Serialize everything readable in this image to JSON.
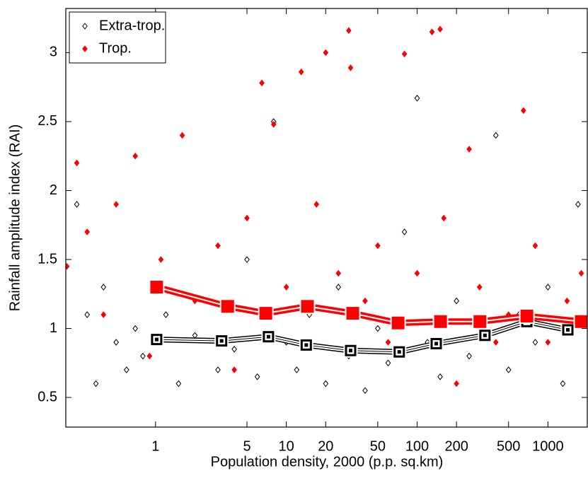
{
  "chart_data": {
    "type": "scatter",
    "xlabel": "Population density, 2000 (p.p. sq.km)",
    "ylabel": "Rainfall amplitude index (RAI)",
    "xscale": "log",
    "xlim": [
      0.206,
      2000
    ],
    "ylim": [
      0.285,
      3.32
    ],
    "xticks": [
      1,
      5,
      10,
      20,
      50,
      100,
      200,
      500,
      1000
    ],
    "yticks": [
      0.5,
      1,
      1.5,
      2,
      2.5,
      3
    ],
    "legend": "upper left",
    "series": [
      {
        "name": "Extra-trop.",
        "color": "#000000",
        "marker": "open-diamond",
        "x": [
          0.25,
          0.3,
          0.35,
          0.4,
          0.5,
          0.6,
          0.7,
          0.8,
          1.2,
          1.5,
          2,
          2.5,
          3,
          4,
          5,
          6,
          8,
          10,
          12,
          15,
          20,
          25,
          30,
          40,
          50,
          60,
          80,
          100,
          120,
          150,
          200,
          250,
          300,
          400,
          500,
          600,
          800,
          1000,
          1300,
          1700
        ],
        "values": [
          1.9,
          1.1,
          0.6,
          1.3,
          0.9,
          0.7,
          1.0,
          0.8,
          1.1,
          0.6,
          0.95,
          1.2,
          0.7,
          0.85,
          1.5,
          0.65,
          2.5,
          0.9,
          0.7,
          1.1,
          0.6,
          1.3,
          0.8,
          0.55,
          1.0,
          0.75,
          1.7,
          2.67,
          0.9,
          0.65,
          1.2,
          0.8,
          1.0,
          2.4,
          0.7,
          1.1,
          0.9,
          1.3,
          0.6,
          1.9
        ]
      },
      {
        "name": "Trop.",
        "color": "#ff0000",
        "marker": "filled-diamond",
        "x": [
          0.21,
          0.25,
          0.3,
          0.4,
          0.5,
          0.7,
          0.9,
          1.1,
          1.6,
          2,
          3,
          4,
          5,
          6.5,
          8,
          10,
          13,
          17,
          20,
          25,
          30,
          31,
          40,
          50,
          60,
          80,
          100,
          130,
          150,
          160,
          200,
          250,
          300,
          400,
          500,
          650,
          800,
          1000,
          1400,
          1800
        ],
        "values": [
          1.45,
          2.2,
          1.7,
          1.1,
          1.9,
          2.25,
          0.8,
          1.5,
          2.4,
          1.2,
          1.6,
          0.7,
          1.8,
          2.78,
          2.48,
          1.3,
          2.86,
          1.9,
          3.0,
          1.4,
          3.16,
          2.89,
          1.2,
          1.6,
          0.9,
          2.99,
          1.4,
          3.15,
          3.17,
          1.8,
          0.6,
          2.3,
          1.3,
          0.9,
          1.1,
          2.58,
          1.6,
          0.9,
          1.2,
          1.4
        ]
      }
    ],
    "means": [
      {
        "color": "#000000",
        "x": [
          1.02,
          3.2,
          7.3,
          14.2,
          31,
          73,
          140,
          330,
          690,
          1420
        ],
        "values": [
          0.92,
          0.91,
          0.94,
          0.88,
          0.84,
          0.83,
          0.89,
          0.95,
          1.05,
          0.99
        ]
      },
      {
        "color": "#ff0000",
        "x": [
          1.02,
          3.56,
          6.97,
          14.5,
          32.2,
          71.5,
          151,
          302,
          690,
          1800
        ],
        "values": [
          1.3,
          1.16,
          1.11,
          1.16,
          1.11,
          1.04,
          1.05,
          1.05,
          1.09,
          1.05
        ]
      }
    ]
  }
}
